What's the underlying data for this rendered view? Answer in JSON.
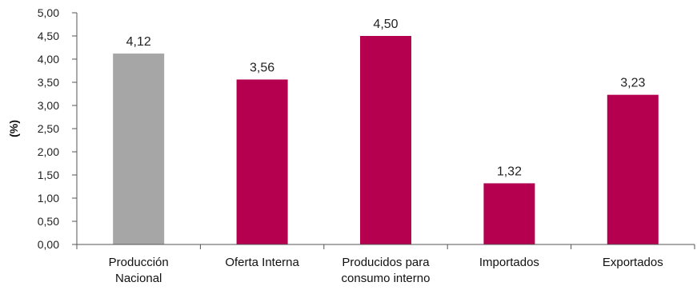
{
  "chart_data": {
    "type": "bar",
    "title": "",
    "xlabel": "",
    "ylabel": "(%)",
    "ylim": [
      0,
      5
    ],
    "yticks": [
      "0,00",
      "0,50",
      "1,00",
      "1,50",
      "2,00",
      "2,50",
      "3,00",
      "3,50",
      "4,00",
      "4,50",
      "5,00"
    ],
    "categories": [
      [
        "Producción",
        "Nacional"
      ],
      [
        "Oferta Interna"
      ],
      [
        "Producidos para",
        "consumo interno"
      ],
      [
        "Importados"
      ],
      [
        "Exportados"
      ]
    ],
    "values": [
      4.12,
      3.56,
      4.5,
      1.32,
      3.23
    ],
    "value_labels": [
      "4,12",
      "3,56",
      "4,50",
      "1,32",
      "3,23"
    ],
    "colors": [
      "#a6a6a6",
      "#b5004f",
      "#b5004f",
      "#b5004f",
      "#b5004f"
    ],
    "grid": false,
    "legend": "none"
  }
}
